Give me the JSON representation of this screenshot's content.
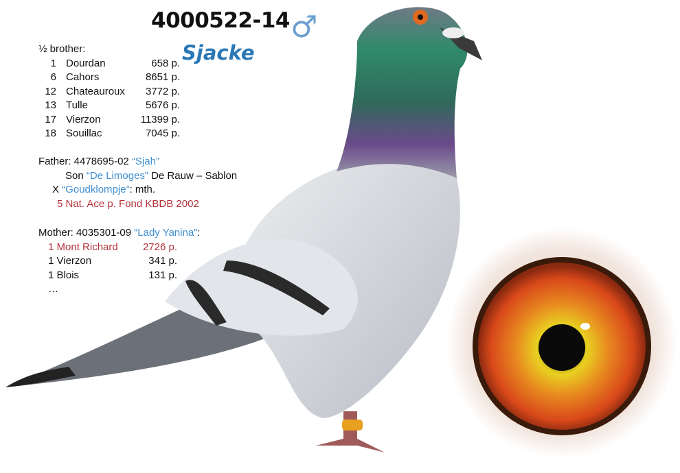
{
  "header": {
    "ring_number": "4000522-14",
    "sex_symbol": "♂",
    "pigeon_name": "Sjacke"
  },
  "half_brother": {
    "label": "½ brother:",
    "results": [
      {
        "rank": "1",
        "race": "Dourdan",
        "points": "658 p."
      },
      {
        "rank": "6",
        "race": "Cahors",
        "points": "8651 p."
      },
      {
        "rank": "12",
        "race": "Chateauroux",
        "points": "3772 p."
      },
      {
        "rank": "13",
        "race": "Tulle",
        "points": "5676 p."
      },
      {
        "rank": "17",
        "race": "Vierzon",
        "points": "11399 p."
      },
      {
        "rank": "18",
        "race": "Souillac",
        "points": "7045 p."
      }
    ]
  },
  "father": {
    "label": "Father: 4478695-02",
    "name": "“Sjah”",
    "son_prefix": "Son",
    "son_of": "“De Limoges”",
    "son_suffix": "De Rauw – Sablon",
    "cross_prefix": "X",
    "cross_name": "“Goudklompje”",
    "cross_suffix": ": mth.",
    "achievement": "5 Nat. Ace p. Fond KBDB 2002"
  },
  "mother": {
    "label": "Mother: 4035301-09",
    "name": "“Lady Yanina”",
    "suffix": ":",
    "results": [
      {
        "text": "1 Mont Richard",
        "points": "2726 p.",
        "highlight": true
      },
      {
        "text": "1 Vierzon",
        "points": "341 p.",
        "highlight": false
      },
      {
        "text": "1 Blois",
        "points": "131 p.",
        "highlight": false
      }
    ],
    "more": "…"
  },
  "colors": {
    "name_blue": "#2a78b6",
    "quote_blue": "#3f8fd0",
    "highlight_red": "#b5323c",
    "iris_orange": "#e0561c"
  }
}
